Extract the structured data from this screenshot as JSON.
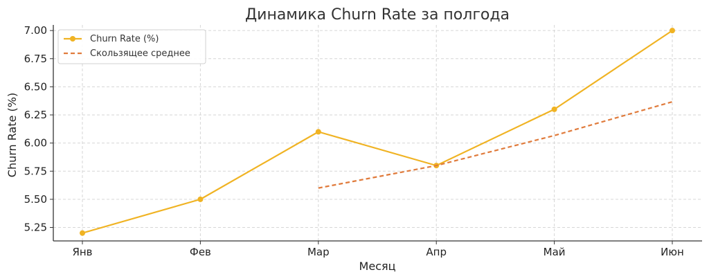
{
  "chart_data": {
    "type": "line",
    "title": "Динамика Churn Rate за полгода",
    "xlabel": "Месяц",
    "ylabel": "Churn Rate (%)",
    "categories": [
      "Янв",
      "Фев",
      "Мар",
      "Апр",
      "Май",
      "Июн"
    ],
    "ylim": [
      5.13,
      7.05
    ],
    "yticks": [
      "5.25",
      "5.50",
      "5.75",
      "6.00",
      "6.25",
      "6.50",
      "6.75",
      "7.00"
    ],
    "grid": true,
    "legend_position": "top-left",
    "series": [
      {
        "name": "Churn Rate (%)",
        "style": "solid-with-markers",
        "color": "#f0b323",
        "values": [
          5.2,
          5.5,
          6.1,
          5.8,
          6.3,
          7.0
        ]
      },
      {
        "name": "Скользящее среднее",
        "style": "dashed",
        "color": "#e07b3c",
        "values": [
          null,
          null,
          5.6,
          5.8,
          6.067,
          6.367
        ]
      }
    ]
  }
}
